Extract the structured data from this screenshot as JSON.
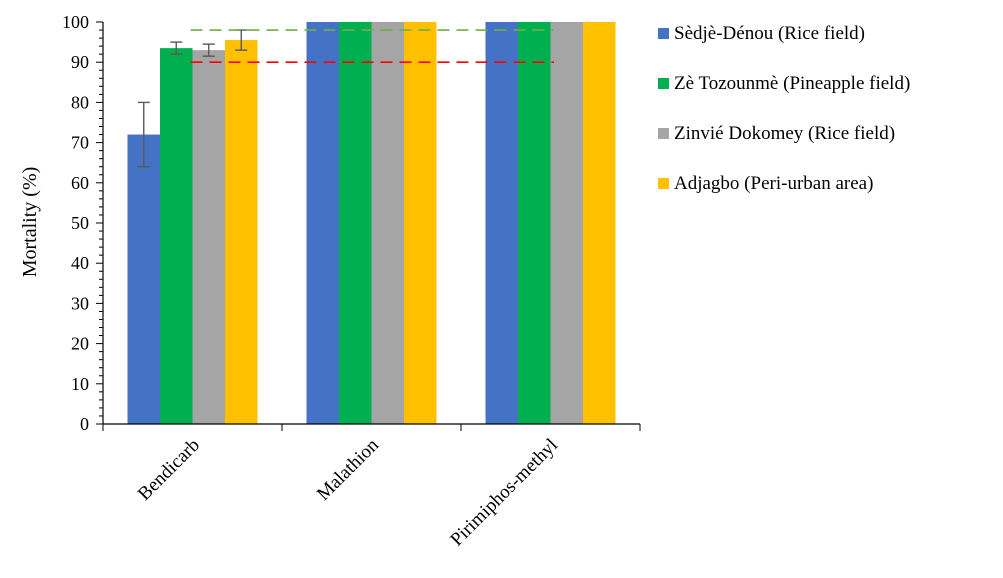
{
  "chart_data": {
    "type": "bar",
    "title": "",
    "xlabel": "",
    "ylabel": "Mortality (%)",
    "ylim": [
      0,
      100
    ],
    "yticks": [
      0,
      10,
      20,
      30,
      40,
      50,
      60,
      70,
      80,
      90,
      100
    ],
    "grid": false,
    "legend_position": "right",
    "categories": [
      "Bendicarb",
      "Malathion",
      "Pirimiphos-methyl"
    ],
    "series": [
      {
        "name": "Sèdjè-Dénou (Rice field)",
        "color": "#4472C4",
        "values": [
          72,
          100,
          100
        ],
        "errors": [
          8,
          0,
          0
        ]
      },
      {
        "name": "Zè Tozounmè (Pineapple field)",
        "color": "#00B050",
        "values": [
          93.5,
          100,
          100
        ],
        "errors": [
          1.5,
          0,
          0
        ]
      },
      {
        "name": "Zinvié Dokomey (Rice field)",
        "color": "#A5A5A5",
        "values": [
          93,
          100,
          100
        ],
        "errors": [
          1.5,
          0,
          0
        ]
      },
      {
        "name": "Adjagbo (Peri-urban area)",
        "color": "#FFC000",
        "values": [
          95.5,
          100,
          100
        ],
        "errors": [
          2.5,
          0,
          0
        ]
      }
    ],
    "reference_lines": [
      {
        "value": 98,
        "color": "#70AD47",
        "style": "dashed"
      },
      {
        "value": 90,
        "color": "#FF0000",
        "style": "dashed"
      }
    ]
  }
}
